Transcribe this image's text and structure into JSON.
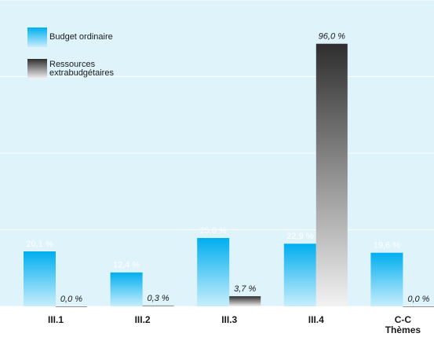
{
  "chart_data": {
    "type": "bar",
    "categories": [
      "III.1",
      "III.2",
      "III.3",
      "III.4",
      "C-C Thèmes"
    ],
    "series": [
      {
        "name": "Budget ordinaire",
        "color": "#00aeef",
        "values": [
          20.1,
          12.4,
          25.0,
          22.9,
          19.6
        ],
        "value_labels": [
          "20,1 %",
          "12,4 %",
          "25,0 %",
          "22,9 %",
          "19,6 %"
        ]
      },
      {
        "name": "Ressources extrabudgétaires",
        "color": "#2e2e2e",
        "values": [
          0.0,
          0.3,
          3.7,
          96.0,
          0.0
        ],
        "value_labels": [
          "0,0 %",
          "0,3 %",
          "3,7 %",
          "96,0 %",
          "0,0 %"
        ]
      }
    ],
    "ylim": [
      0,
      112
    ],
    "yticks": [
      0,
      28,
      56,
      84,
      112
    ],
    "grid": true
  }
}
